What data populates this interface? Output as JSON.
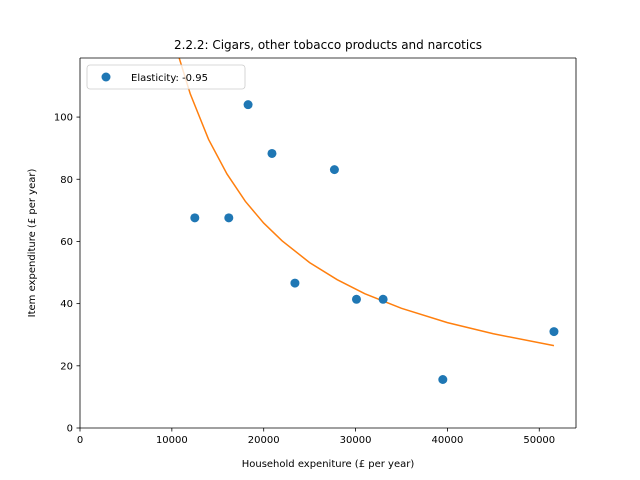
{
  "chart_data": {
    "type": "scatter",
    "title": "2.2.2: Cigars, other tobacco products and narcotics",
    "xlabel": "Household expeniture (£ per year)",
    "ylabel": "Item expenditure (£ per year)",
    "xlim": [
      0,
      54000
    ],
    "ylim": [
      0,
      119
    ],
    "xticks": [
      0,
      10000,
      20000,
      30000,
      40000,
      50000
    ],
    "yticks": [
      0,
      20,
      40,
      60,
      80,
      100
    ],
    "grid": false,
    "legend_position": "top-left",
    "series": [
      {
        "name": "Elasticity: -0.95",
        "kind": "scatter",
        "color": "#1f77b4",
        "x": [
          12500,
          16200,
          18300,
          20900,
          23400,
          27700,
          30100,
          33000,
          39500,
          51600
        ],
        "y": [
          67.6,
          67.6,
          104.0,
          88.3,
          46.6,
          83.1,
          41.4,
          41.4,
          15.6,
          31.0
        ]
      },
      {
        "kind": "line",
        "color": "#ff7f0e",
        "x": [
          10800,
          12000,
          14000,
          16000,
          18000,
          20000,
          22000,
          25000,
          28000,
          31000,
          35000,
          40000,
          45000,
          51600
        ],
        "y": [
          119,
          107.5,
          92.8,
          81.7,
          72.9,
          65.9,
          60.2,
          53.2,
          47.7,
          43.2,
          38.5,
          33.9,
          30.3,
          26.5
        ]
      }
    ]
  }
}
